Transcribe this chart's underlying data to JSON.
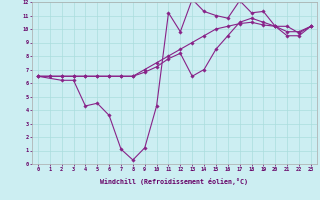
{
  "xlabel": "Windchill (Refroidissement éolien,°C)",
  "bg_color": "#cceef2",
  "line_color": "#882288",
  "grid_color": "#aadddd",
  "series1_x": [
    0,
    1,
    2,
    3,
    4,
    5,
    6,
    7,
    8,
    9,
    10,
    11,
    12,
    13,
    14,
    15,
    16,
    17,
    18,
    19,
    20,
    21,
    22,
    23
  ],
  "series1_y": [
    6.5,
    6.5,
    6.5,
    6.5,
    6.5,
    6.5,
    6.5,
    6.5,
    6.5,
    7.0,
    7.5,
    8.0,
    8.5,
    9.0,
    9.5,
    10.0,
    10.2,
    10.4,
    10.5,
    10.3,
    10.2,
    9.8,
    9.8,
    10.2
  ],
  "series2_x": [
    0,
    2,
    3,
    4,
    5,
    6,
    7,
    8,
    9,
    10,
    11,
    12,
    13,
    14,
    15,
    16,
    17,
    18,
    19,
    20,
    21,
    22,
    23
  ],
  "series2_y": [
    6.5,
    6.2,
    6.2,
    4.3,
    4.5,
    3.6,
    1.1,
    0.3,
    1.2,
    4.3,
    11.2,
    9.8,
    12.2,
    11.3,
    11.0,
    10.8,
    12.1,
    11.2,
    11.3,
    10.2,
    10.2,
    9.7,
    10.2
  ],
  "series3_x": [
    0,
    1,
    2,
    3,
    4,
    5,
    6,
    7,
    8,
    9,
    10,
    11,
    12,
    13,
    14,
    15,
    16,
    17,
    18,
    19,
    20,
    21,
    22,
    23
  ],
  "series3_y": [
    6.5,
    6.5,
    6.5,
    6.5,
    6.5,
    6.5,
    6.5,
    6.5,
    6.5,
    6.8,
    7.2,
    7.8,
    8.2,
    6.5,
    7.0,
    8.5,
    9.5,
    10.5,
    10.8,
    10.5,
    10.2,
    9.5,
    9.5,
    10.2
  ],
  "xlim": [
    0,
    23
  ],
  "ylim": [
    0,
    12
  ],
  "xticks": [
    0,
    1,
    2,
    3,
    4,
    5,
    6,
    7,
    8,
    9,
    10,
    11,
    12,
    13,
    14,
    15,
    16,
    17,
    18,
    19,
    20,
    21,
    22,
    23
  ],
  "yticks": [
    0,
    1,
    2,
    3,
    4,
    5,
    6,
    7,
    8,
    9,
    10,
    11,
    12
  ]
}
